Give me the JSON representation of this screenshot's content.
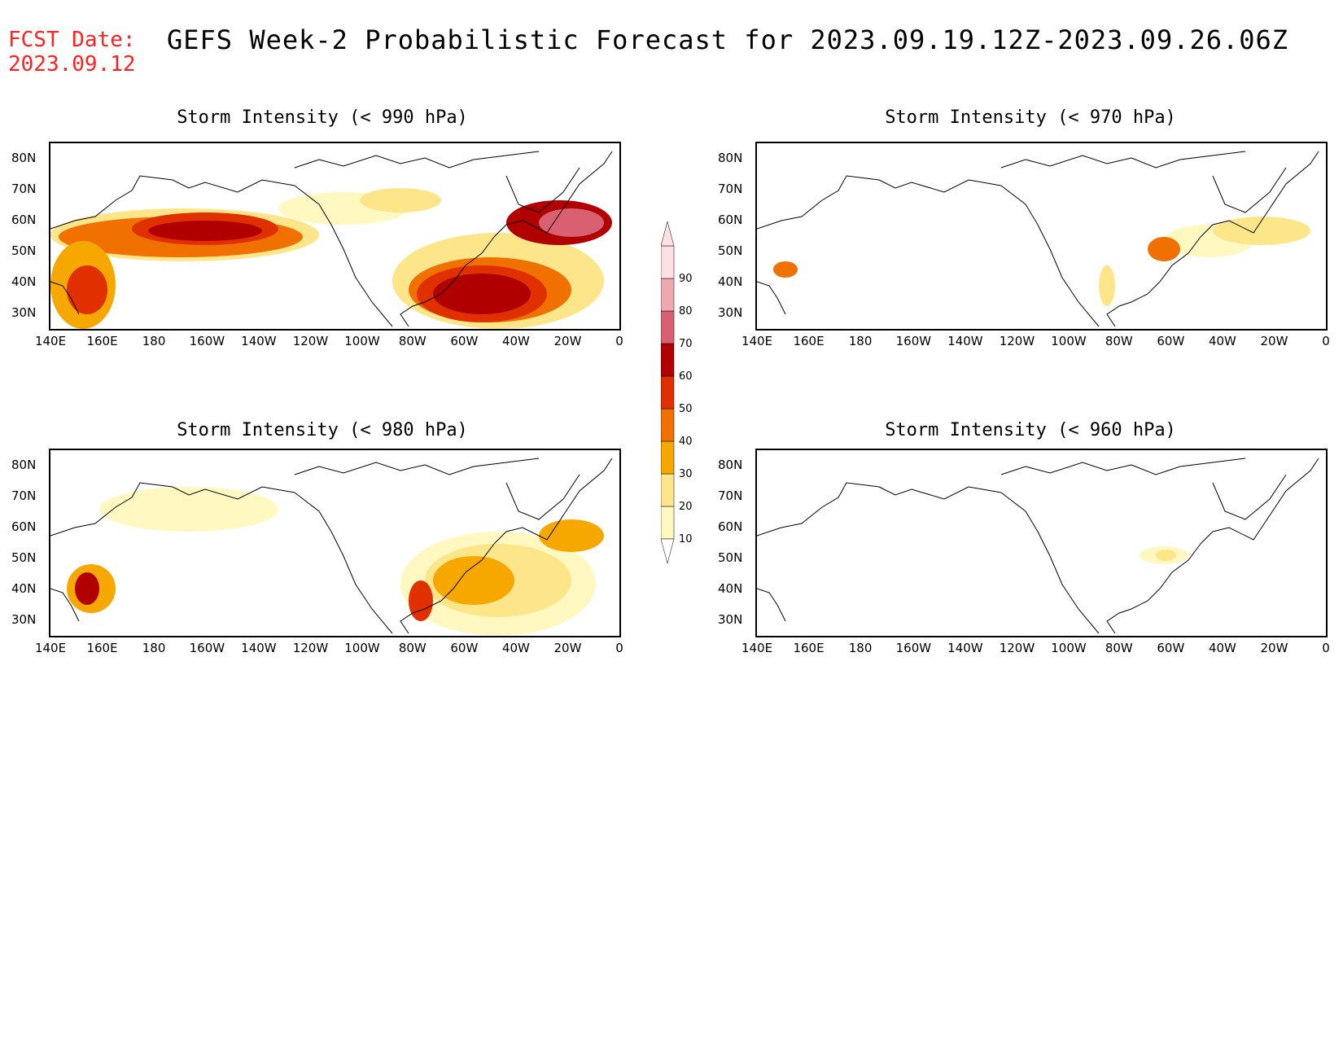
{
  "header": {
    "fcst_label": "FCST Date:",
    "fcst_date": "2023.09.12",
    "title": "GEFS Week-2 Probabilistic Forecast for 2023.09.19.12Z-2023.09.26.06Z"
  },
  "axes": {
    "lon_labels": [
      "140E",
      "160E",
      "180",
      "160W",
      "140W",
      "120W",
      "100W",
      "80W",
      "60W",
      "40W",
      "20W",
      "0"
    ],
    "lat_labels": [
      "80N",
      "70N",
      "60N",
      "50N",
      "40N",
      "30N"
    ]
  },
  "panels": [
    {
      "id": "p990",
      "title": "Storm Intensity (< 990 hPa)"
    },
    {
      "id": "p970",
      "title": "Storm Intensity (< 970 hPa)"
    },
    {
      "id": "p980",
      "title": "Storm Intensity (< 980 hPa)"
    },
    {
      "id": "p960",
      "title": "Storm Intensity (< 960 hPa)"
    }
  ],
  "legend": {
    "levels": [
      "10",
      "20",
      "30",
      "40",
      "50",
      "60",
      "70",
      "80",
      "90"
    ],
    "colors": [
      "#fff8c0",
      "#fde68a",
      "#f7a800",
      "#f07000",
      "#e03000",
      "#b00000",
      "#d86070",
      "#f0a8b0",
      "#fde0e4"
    ]
  }
}
